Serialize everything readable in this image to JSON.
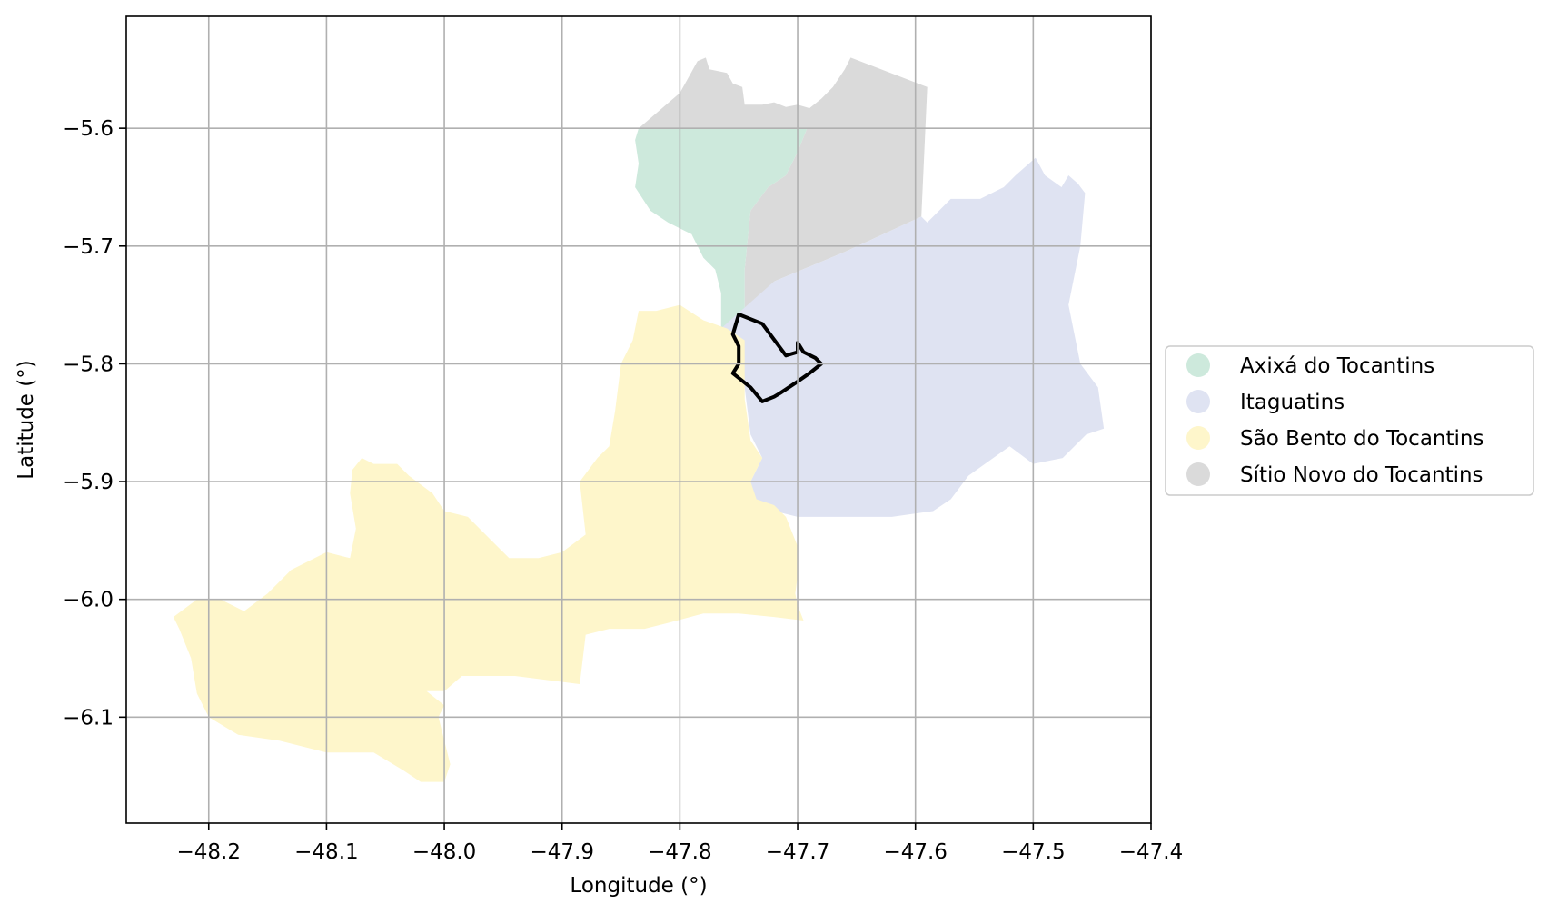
{
  "chart_data": {
    "type": "map",
    "xlabel": "Longitude (°)",
    "ylabel": "Latitude (°)",
    "xlim": [
      -48.27,
      -47.4
    ],
    "ylim": [
      -6.19,
      -5.505
    ],
    "grid": true,
    "legend_position": "right",
    "xticks": [
      {
        "value": -48.2,
        "label": "−48.2"
      },
      {
        "value": -48.1,
        "label": "−48.1"
      },
      {
        "value": -48.0,
        "label": "−48.0"
      },
      {
        "value": -47.9,
        "label": "−47.9"
      },
      {
        "value": -47.8,
        "label": "−47.8"
      },
      {
        "value": -47.7,
        "label": "−47.7"
      },
      {
        "value": -47.6,
        "label": "−47.6"
      },
      {
        "value": -47.5,
        "label": "−47.5"
      },
      {
        "value": -47.4,
        "label": "−47.4"
      }
    ],
    "yticks": [
      {
        "value": -5.6,
        "label": "−5.6"
      },
      {
        "value": -5.7,
        "label": "−5.7"
      },
      {
        "value": -5.8,
        "label": "−5.8"
      },
      {
        "value": -5.9,
        "label": "−5.9"
      },
      {
        "value": -6.0,
        "label": "−6.0"
      },
      {
        "value": -6.1,
        "label": "−6.1"
      }
    ],
    "regions": [
      {
        "name": "Sítio Novo do Tocantins",
        "color": "#dadada",
        "coords": [
          [
            -47.835,
            -5.6
          ],
          [
            -47.8,
            -5.57
          ],
          [
            -47.785,
            -5.543
          ],
          [
            -47.778,
            -5.54
          ],
          [
            -47.775,
            -5.55
          ],
          [
            -47.76,
            -5.553
          ],
          [
            -47.755,
            -5.562
          ],
          [
            -47.747,
            -5.565
          ],
          [
            -47.745,
            -5.58
          ],
          [
            -47.73,
            -5.58
          ],
          [
            -47.72,
            -5.578
          ],
          [
            -47.71,
            -5.582
          ],
          [
            -47.7,
            -5.58
          ],
          [
            -47.69,
            -5.583
          ],
          [
            -47.68,
            -5.575
          ],
          [
            -47.67,
            -5.565
          ],
          [
            -47.66,
            -5.55
          ],
          [
            -47.655,
            -5.54
          ],
          [
            -47.59,
            -5.565
          ],
          [
            -47.595,
            -5.675
          ],
          [
            -47.66,
            -5.705
          ],
          [
            -47.72,
            -5.73
          ],
          [
            -47.745,
            -5.76
          ],
          [
            -47.745,
            -5.72
          ],
          [
            -47.74,
            -5.67
          ],
          [
            -47.725,
            -5.65
          ],
          [
            -47.71,
            -5.64
          ],
          [
            -47.7,
            -5.62
          ],
          [
            -47.692,
            -5.6
          ]
        ]
      },
      {
        "name": "Axixá do Tocantins",
        "color": "#cde9dc",
        "coords": [
          [
            -47.835,
            -5.6
          ],
          [
            -47.692,
            -5.6
          ],
          [
            -47.7,
            -5.62
          ],
          [
            -47.71,
            -5.64
          ],
          [
            -47.725,
            -5.65
          ],
          [
            -47.74,
            -5.67
          ],
          [
            -47.745,
            -5.72
          ],
          [
            -47.745,
            -5.77
          ],
          [
            -47.755,
            -5.775
          ],
          [
            -47.765,
            -5.772
          ],
          [
            -47.765,
            -5.74
          ],
          [
            -47.77,
            -5.72
          ],
          [
            -47.78,
            -5.71
          ],
          [
            -47.79,
            -5.69
          ],
          [
            -47.81,
            -5.68
          ],
          [
            -47.825,
            -5.67
          ],
          [
            -47.838,
            -5.65
          ],
          [
            -47.835,
            -5.63
          ],
          [
            -47.838,
            -5.61
          ]
        ]
      },
      {
        "name": "Itaguatins",
        "color": "#dfe3f2",
        "coords": [
          [
            -47.765,
            -5.77
          ],
          [
            -47.72,
            -5.73
          ],
          [
            -47.66,
            -5.705
          ],
          [
            -47.595,
            -5.675
          ],
          [
            -47.59,
            -5.68
          ],
          [
            -47.57,
            -5.66
          ],
          [
            -47.545,
            -5.66
          ],
          [
            -47.525,
            -5.65
          ],
          [
            -47.515,
            -5.64
          ],
          [
            -47.498,
            -5.625
          ],
          [
            -47.49,
            -5.64
          ],
          [
            -47.476,
            -5.65
          ],
          [
            -47.47,
            -5.64
          ],
          [
            -47.462,
            -5.647
          ],
          [
            -47.456,
            -5.655
          ],
          [
            -47.46,
            -5.7
          ],
          [
            -47.47,
            -5.75
          ],
          [
            -47.46,
            -5.8
          ],
          [
            -47.445,
            -5.82
          ],
          [
            -47.44,
            -5.855
          ],
          [
            -47.455,
            -5.86
          ],
          [
            -47.475,
            -5.88
          ],
          [
            -47.5,
            -5.885
          ],
          [
            -47.52,
            -5.87
          ],
          [
            -47.555,
            -5.895
          ],
          [
            -47.57,
            -5.915
          ],
          [
            -47.585,
            -5.925
          ],
          [
            -47.62,
            -5.93
          ],
          [
            -47.66,
            -5.93
          ],
          [
            -47.7,
            -5.93
          ],
          [
            -47.74,
            -5.92
          ],
          [
            -47.74,
            -5.9
          ],
          [
            -47.73,
            -5.88
          ],
          [
            -47.74,
            -5.86
          ],
          [
            -47.745,
            -5.82
          ]
        ]
      },
      {
        "name": "São Bento do Tocantins",
        "color": "#fef6cb",
        "coords": [
          [
            -47.835,
            -5.755
          ],
          [
            -47.82,
            -5.755
          ],
          [
            -47.8,
            -5.75
          ],
          [
            -47.78,
            -5.763
          ],
          [
            -47.76,
            -5.77
          ],
          [
            -47.745,
            -5.78
          ],
          [
            -47.745,
            -5.83
          ],
          [
            -47.74,
            -5.865
          ],
          [
            -47.73,
            -5.88
          ],
          [
            -47.74,
            -5.9
          ],
          [
            -47.735,
            -5.915
          ],
          [
            -47.72,
            -5.92
          ],
          [
            -47.71,
            -5.93
          ],
          [
            -47.7,
            -5.955
          ],
          [
            -47.7,
            -5.98
          ],
          [
            -47.702,
            -5.995
          ],
          [
            -47.7,
            -6.005
          ],
          [
            -47.695,
            -6.018
          ],
          [
            -47.72,
            -6.015
          ],
          [
            -47.75,
            -6.012
          ],
          [
            -47.78,
            -6.012
          ],
          [
            -47.81,
            -6.02
          ],
          [
            -47.83,
            -6.025
          ],
          [
            -47.86,
            -6.025
          ],
          [
            -47.88,
            -6.03
          ],
          [
            -47.885,
            -6.072
          ],
          [
            -47.94,
            -6.065
          ],
          [
            -47.96,
            -6.065
          ],
          [
            -47.985,
            -6.065
          ],
          [
            -48.0,
            -6.078
          ],
          [
            -48.015,
            -6.078
          ],
          [
            -48.0,
            -6.09
          ],
          [
            -48.005,
            -6.1
          ],
          [
            -48.0,
            -6.12
          ],
          [
            -47.995,
            -6.14
          ],
          [
            -48.0,
            -6.155
          ],
          [
            -48.02,
            -6.155
          ],
          [
            -48.035,
            -6.145
          ],
          [
            -48.06,
            -6.13
          ],
          [
            -48.08,
            -6.13
          ],
          [
            -48.1,
            -6.13
          ],
          [
            -48.14,
            -6.12
          ],
          [
            -48.175,
            -6.115
          ],
          [
            -48.2,
            -6.1
          ],
          [
            -48.21,
            -6.08
          ],
          [
            -48.215,
            -6.05
          ],
          [
            -48.225,
            -6.025
          ],
          [
            -48.23,
            -6.015
          ],
          [
            -48.21,
            -6.0
          ],
          [
            -48.19,
            -6.0
          ],
          [
            -48.17,
            -6.01
          ],
          [
            -48.15,
            -5.995
          ],
          [
            -48.13,
            -5.975
          ],
          [
            -48.12,
            -5.97
          ],
          [
            -48.1,
            -5.96
          ],
          [
            -48.08,
            -5.965
          ],
          [
            -48.075,
            -5.94
          ],
          [
            -48.08,
            -5.91
          ],
          [
            -48.078,
            -5.89
          ],
          [
            -48.07,
            -5.88
          ],
          [
            -48.06,
            -5.885
          ],
          [
            -48.04,
            -5.885
          ],
          [
            -48.03,
            -5.895
          ],
          [
            -48.01,
            -5.91
          ],
          [
            -48.0,
            -5.925
          ],
          [
            -47.98,
            -5.93
          ],
          [
            -47.96,
            -5.95
          ],
          [
            -47.945,
            -5.965
          ],
          [
            -47.92,
            -5.965
          ],
          [
            -47.9,
            -5.96
          ],
          [
            -47.88,
            -5.945
          ],
          [
            -47.885,
            -5.9
          ],
          [
            -47.87,
            -5.88
          ],
          [
            -47.86,
            -5.87
          ],
          [
            -47.855,
            -5.84
          ],
          [
            -47.85,
            -5.8
          ],
          [
            -47.84,
            -5.78
          ]
        ]
      }
    ],
    "outline": {
      "color": "#000000",
      "coords": [
        [
          -47.75,
          -5.758
        ],
        [
          -47.73,
          -5.766
        ],
        [
          -47.71,
          -5.793
        ],
        [
          -47.7,
          -5.79
        ],
        [
          -47.7,
          -5.782
        ],
        [
          -47.695,
          -5.79
        ],
        [
          -47.685,
          -5.795
        ],
        [
          -47.68,
          -5.8
        ],
        [
          -47.69,
          -5.808
        ],
        [
          -47.7,
          -5.815
        ],
        [
          -47.715,
          -5.825
        ],
        [
          -47.72,
          -5.828
        ],
        [
          -47.73,
          -5.832
        ],
        [
          -47.74,
          -5.82
        ],
        [
          -47.75,
          -5.812
        ],
        [
          -47.755,
          -5.808
        ],
        [
          -47.75,
          -5.8
        ],
        [
          -47.75,
          -5.785
        ],
        [
          -47.755,
          -5.775
        ]
      ]
    },
    "legend": [
      {
        "label": "Axixá do Tocantins",
        "color": "#cde9dc"
      },
      {
        "label": "Itaguatins",
        "color": "#dfe3f2"
      },
      {
        "label": "São Bento do Tocantins",
        "color": "#fef6cb"
      },
      {
        "label": "Sítio Novo do Tocantins",
        "color": "#dadada"
      }
    ]
  }
}
